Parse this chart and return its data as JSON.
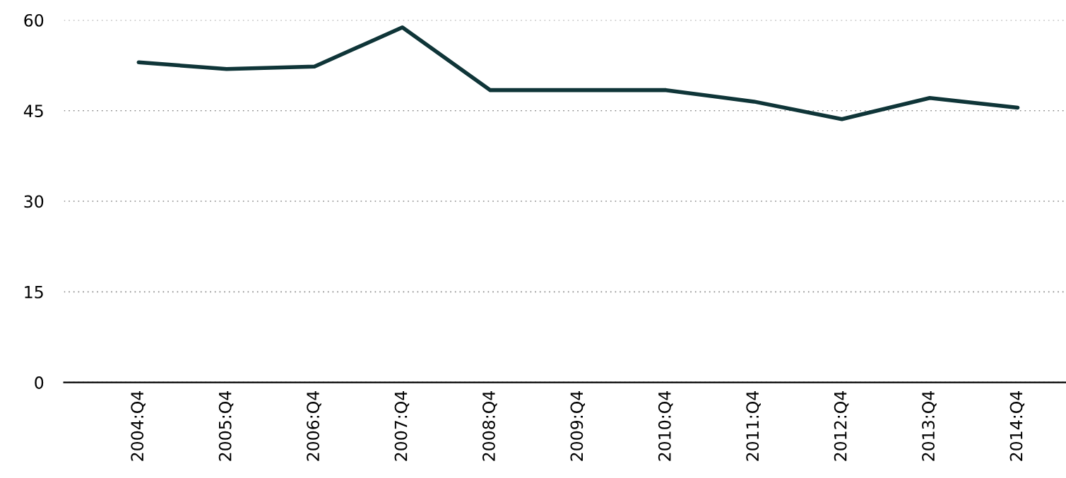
{
  "chart_data": {
    "type": "line",
    "categories": [
      "2004:Q4",
      "2005:Q4",
      "2006:Q4",
      "2007:Q4",
      "2008:Q4",
      "2009:Q4",
      "2010:Q4",
      "2011:Q4",
      "2012:Q4",
      "2013:Q4",
      "2014:Q4"
    ],
    "series": [
      {
        "color": "#0f3538",
        "values": [
          53.0,
          51.9,
          52.3,
          58.8,
          48.4,
          48.4,
          48.4,
          46.5,
          43.6,
          47.1,
          45.5
        ]
      }
    ],
    "ylim": [
      0,
      60
    ],
    "yticks": [
      0,
      15,
      30,
      45,
      60
    ],
    "grid": "y",
    "marker": "none",
    "line_style": "solid",
    "legend": false
  }
}
